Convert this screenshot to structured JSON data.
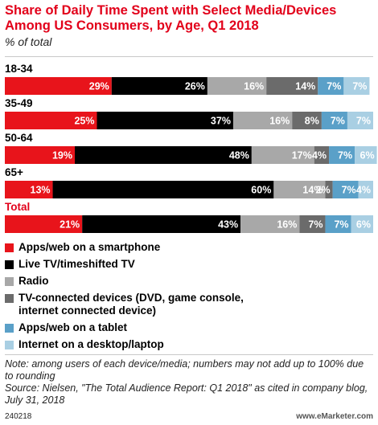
{
  "title": "Share of Daily Time Spent with Select Media/Devices Among US Consumers, by Age, Q1 2018",
  "subtitle": "% of total",
  "colors": [
    "#e8141b",
    "#000000",
    "#a8a8a8",
    "#6b6b6b",
    "#5aa0c8",
    "#a9cfe3"
  ],
  "chart_data": {
    "type": "bar",
    "orientation": "horizontal",
    "stacked": true,
    "categories": [
      "18-34",
      "35-49",
      "50-64",
      "65+",
      "Total"
    ],
    "series": [
      {
        "name": "Apps/web on a smartphone",
        "values": [
          29,
          25,
          19,
          13,
          21
        ],
        "labels": [
          "29%",
          "25%",
          "19%",
          "13%",
          "21%"
        ]
      },
      {
        "name": "Live TV/timeshifted TV",
        "values": [
          26,
          37,
          48,
          60,
          43
        ],
        "labels": [
          "26%",
          "37%",
          "48%",
          "60%",
          "43%"
        ]
      },
      {
        "name": "Radio",
        "values": [
          16,
          16,
          17,
          14,
          16
        ],
        "labels": [
          "16%",
          "16%",
          "17%",
          "14%",
          "16%"
        ]
      },
      {
        "name": "TV-connected devices (DVD, game console, internet connected device)",
        "values": [
          14,
          8,
          4,
          2,
          7
        ],
        "labels": [
          "14%",
          "8%",
          "4%",
          "2%",
          "7%"
        ]
      },
      {
        "name": "Apps/web on a tablet",
        "values": [
          7,
          7,
          7,
          7,
          7
        ],
        "labels": [
          "7%",
          "7%",
          "7%",
          "7%",
          "7%"
        ]
      },
      {
        "name": "Internet on a desktop/laptop",
        "values": [
          7,
          7,
          6,
          4,
          6
        ],
        "labels": [
          "7%",
          "7%",
          "6%",
          "4%",
          "6%"
        ]
      }
    ],
    "xlim": [
      0,
      100
    ]
  },
  "legend": [
    "Apps/web on a smartphone",
    "Live TV/timeshifted TV",
    "Radio",
    "TV-connected devices (DVD, game console,\ninternet connected device)",
    "Apps/web on a tablet",
    "Internet on a desktop/laptop"
  ],
  "note": "Note: among users of each device/media; numbers may not add up to 100% due to rounding",
  "source": "Source: Nielsen, \"The Total Audience Report: Q1 2018\" as cited in company blog, July 31, 2018",
  "footer": {
    "id": "240218",
    "brand": "www.eMarketer.com"
  }
}
